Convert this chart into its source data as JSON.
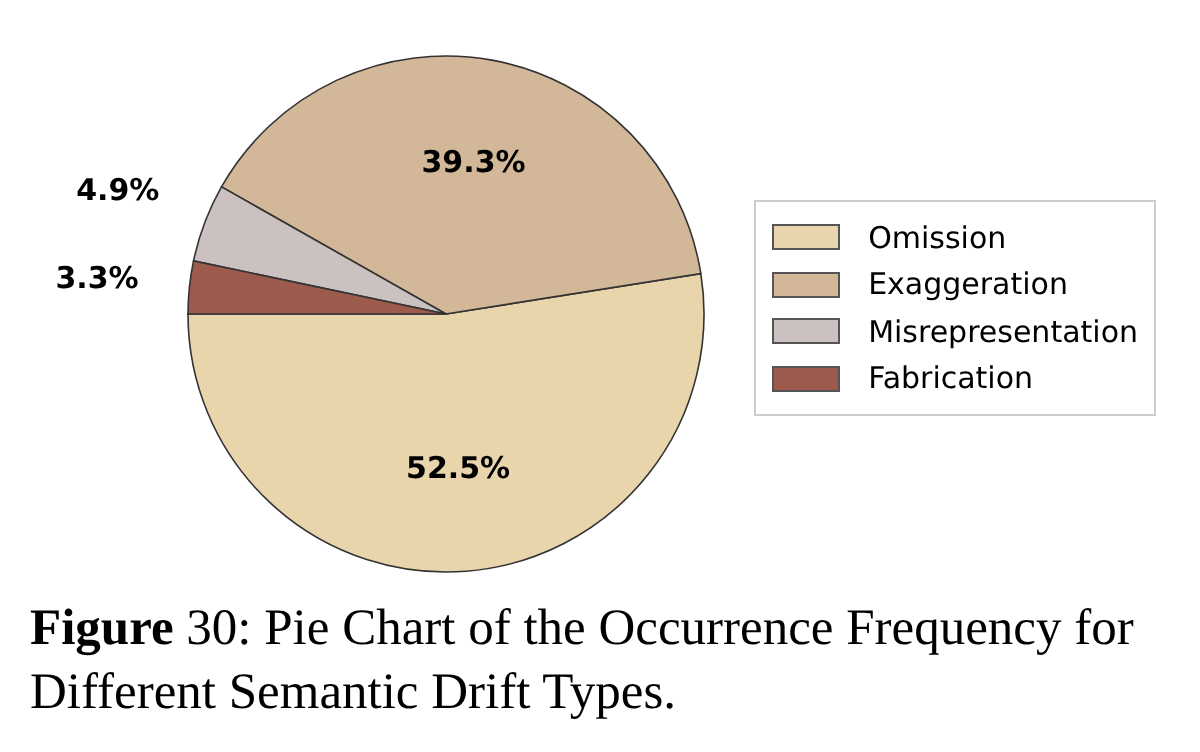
{
  "chart_data": {
    "type": "pie",
    "categories": [
      "Omission",
      "Exaggeration",
      "Misrepresentation",
      "Fabrication"
    ],
    "values": [
      52.5,
      39.3,
      4.9,
      3.3
    ],
    "colors": [
      "#e8d5ab",
      "#d2b898",
      "#cbc1c0",
      "#9c5b4c"
    ],
    "value_labels": [
      "52.5%",
      "39.3%",
      "4.9%",
      "3.3%"
    ],
    "legend": "right",
    "annotations": [
      "Figure 30: Pie Chart of the Occurrence Frequency for Different Semantic Drift Types."
    ]
  }
}
